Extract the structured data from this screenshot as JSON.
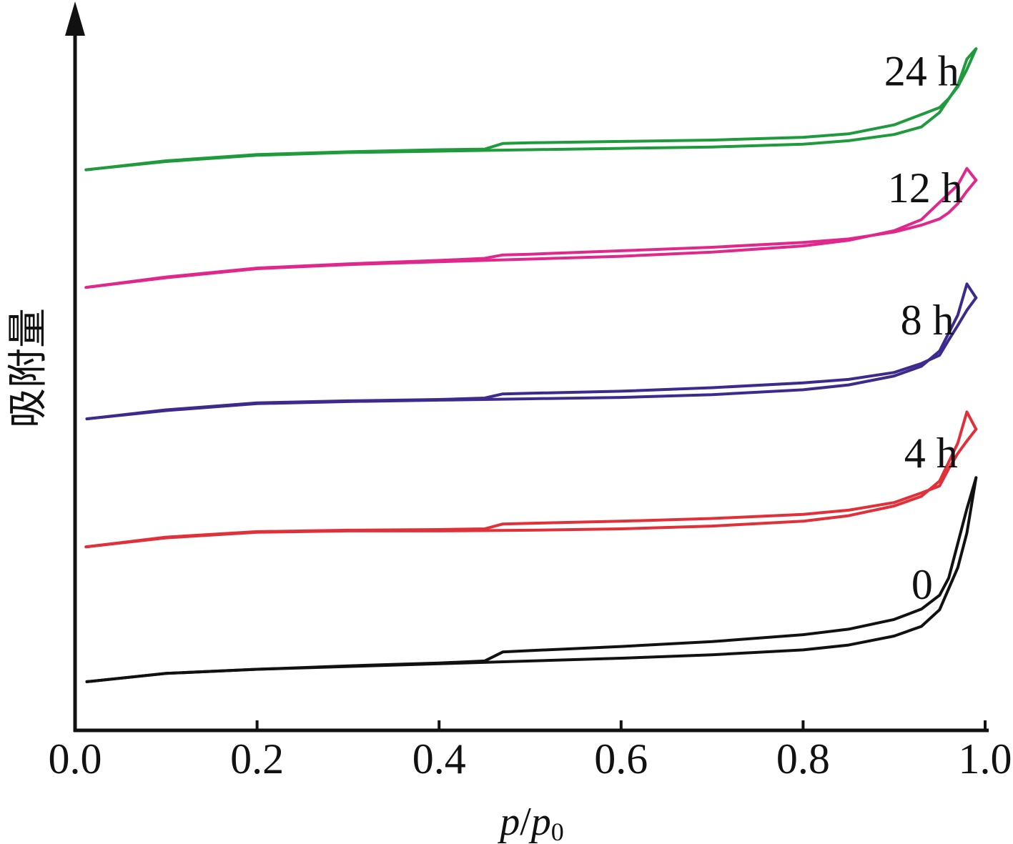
{
  "chart_data": {
    "type": "line",
    "title": "",
    "xlabel": {
      "main": "p",
      "slash": "/",
      "main2": "p",
      "sub": "0"
    },
    "ylabel": "吸附量",
    "xlim": [
      0.0,
      1.0
    ],
    "y_ticks_shown": false,
    "grid": false,
    "legend": "none",
    "x_tick_labels": [
      "0.0",
      "0.2",
      "0.4",
      "0.6",
      "0.8",
      "1.0"
    ],
    "x_tick_values": [
      0.0,
      0.2,
      0.4,
      0.6,
      0.8,
      1.0
    ],
    "ylim": [
      0,
      100
    ],
    "series": [
      {
        "name": "0",
        "color": "#111111",
        "adsorption": {
          "x": [
            0.013,
            0.1,
            0.2,
            0.3,
            0.4,
            0.5,
            0.6,
            0.7,
            0.8,
            0.85,
            0.9,
            0.93,
            0.95,
            0.97,
            0.98,
            0.99
          ],
          "y": [
            6.0,
            7.2,
            7.8,
            8.2,
            8.6,
            9.0,
            9.4,
            9.9,
            10.6,
            11.3,
            12.6,
            14.0,
            16.4,
            22.5,
            27.5,
            35.5
          ]
        },
        "desorption": {
          "x": [
            0.99,
            0.98,
            0.97,
            0.96,
            0.95,
            0.93,
            0.9,
            0.85,
            0.8,
            0.7,
            0.6,
            0.5,
            0.47,
            0.45,
            0.4,
            0.3,
            0.2,
            0.1,
            0.013
          ],
          "y": [
            35.5,
            31.0,
            26.0,
            21.0,
            18.5,
            16.5,
            15.0,
            13.6,
            12.8,
            11.8,
            11.1,
            10.5,
            10.3,
            9.0,
            8.7,
            8.3,
            7.8,
            7.2,
            6.0
          ]
        }
      },
      {
        "name": "4 h",
        "color": "#e0303a",
        "adsorption": {
          "x": [
            0.012,
            0.1,
            0.2,
            0.3,
            0.4,
            0.5,
            0.6,
            0.7,
            0.8,
            0.85,
            0.9,
            0.93,
            0.95,
            0.97,
            0.98,
            0.99
          ],
          "y": [
            25.5,
            26.8,
            27.6,
            27.8,
            27.8,
            27.9,
            28.1,
            28.5,
            29.2,
            30.0,
            31.4,
            32.8,
            35.0,
            40.5,
            45.0,
            42.5
          ]
        },
        "desorption": {
          "x": [
            0.99,
            0.98,
            0.97,
            0.96,
            0.95,
            0.93,
            0.9,
            0.85,
            0.8,
            0.7,
            0.6,
            0.5,
            0.47,
            0.45,
            0.4,
            0.3,
            0.2,
            0.1,
            0.012
          ],
          "y": [
            42.5,
            40.8,
            39.0,
            36.8,
            34.3,
            33.3,
            31.9,
            30.8,
            30.2,
            29.6,
            29.2,
            28.9,
            28.8,
            28.1,
            28.0,
            27.9,
            27.7,
            26.9,
            25.5
          ]
        }
      },
      {
        "name": "8 h",
        "color": "#3d2a8c",
        "adsorption": {
          "x": [
            0.013,
            0.1,
            0.2,
            0.3,
            0.4,
            0.5,
            0.6,
            0.7,
            0.8,
            0.85,
            0.9,
            0.93,
            0.95,
            0.97,
            0.98,
            0.99
          ],
          "y": [
            44.0,
            45.2,
            46.2,
            46.5,
            46.7,
            46.9,
            47.1,
            47.5,
            48.2,
            48.9,
            50.2,
            51.6,
            53.8,
            59.0,
            63.5,
            61.5
          ]
        },
        "desorption": {
          "x": [
            0.99,
            0.98,
            0.97,
            0.96,
            0.95,
            0.93,
            0.9,
            0.85,
            0.8,
            0.7,
            0.6,
            0.5,
            0.47,
            0.45,
            0.4,
            0.3,
            0.2,
            0.1,
            0.013
          ],
          "y": [
            61.5,
            59.7,
            57.5,
            55.4,
            53.2,
            52.0,
            50.7,
            49.7,
            49.2,
            48.5,
            48.0,
            47.7,
            47.6,
            47.0,
            46.8,
            46.6,
            46.3,
            45.3,
            44.0
          ]
        }
      },
      {
        "name": "12 h",
        "color": "#e0288c",
        "adsorption": {
          "x": [
            0.012,
            0.1,
            0.2,
            0.3,
            0.4,
            0.5,
            0.6,
            0.7,
            0.8,
            0.85,
            0.9,
            0.93,
            0.95,
            0.97,
            0.98,
            0.99
          ],
          "y": [
            63.0,
            64.4,
            65.7,
            66.3,
            66.7,
            67.1,
            67.5,
            68.1,
            69.0,
            69.8,
            71.2,
            72.8,
            75.3,
            77.8,
            80.2,
            78.5
          ]
        },
        "desorption": {
          "x": [
            0.99,
            0.98,
            0.97,
            0.96,
            0.95,
            0.93,
            0.9,
            0.85,
            0.8,
            0.7,
            0.6,
            0.5,
            0.47,
            0.45,
            0.4,
            0.3,
            0.2,
            0.1,
            0.012
          ],
          "y": [
            78.5,
            76.9,
            75.1,
            73.8,
            72.9,
            72.0,
            71.0,
            70.0,
            69.5,
            68.8,
            68.3,
            67.8,
            67.7,
            67.2,
            66.9,
            66.4,
            65.8,
            64.5,
            63.0
          ]
        }
      },
      {
        "name": "24 h",
        "color": "#1f9a3c",
        "adsorption": {
          "x": [
            0.012,
            0.1,
            0.2,
            0.3,
            0.4,
            0.5,
            0.6,
            0.7,
            0.8,
            0.85,
            0.9,
            0.93,
            0.95,
            0.97,
            0.98,
            0.99
          ],
          "y": [
            80.0,
            81.2,
            82.1,
            82.5,
            82.7,
            82.9,
            83.1,
            83.3,
            83.7,
            84.2,
            85.1,
            86.2,
            88.3,
            92.2,
            96.0,
            97.5
          ]
        },
        "desorption": {
          "x": [
            0.99,
            0.98,
            0.97,
            0.96,
            0.95,
            0.93,
            0.9,
            0.85,
            0.8,
            0.7,
            0.6,
            0.5,
            0.47,
            0.45,
            0.4,
            0.3,
            0.2,
            0.1,
            0.012
          ],
          "y": [
            97.5,
            94.5,
            92.0,
            90.3,
            89.0,
            88.0,
            86.5,
            85.2,
            84.7,
            84.3,
            84.1,
            83.9,
            83.8,
            83.0,
            82.9,
            82.6,
            82.2,
            81.3,
            80.0
          ]
        }
      }
    ],
    "annotations": [
      {
        "text": "24 h",
        "series": "24 h",
        "x": 0.889,
        "y": 92.2
      },
      {
        "text": "12 h",
        "series": "12 h",
        "x": 0.893,
        "y": 75.3
      },
      {
        "text": "8 h",
        "series": "8 h",
        "x": 0.907,
        "y": 56.2
      },
      {
        "text": "4 h",
        "series": "4 h",
        "x": 0.911,
        "y": 37.0
      },
      {
        "text": "0",
        "series": "0",
        "x": 0.919,
        "y": 18.0
      }
    ]
  }
}
